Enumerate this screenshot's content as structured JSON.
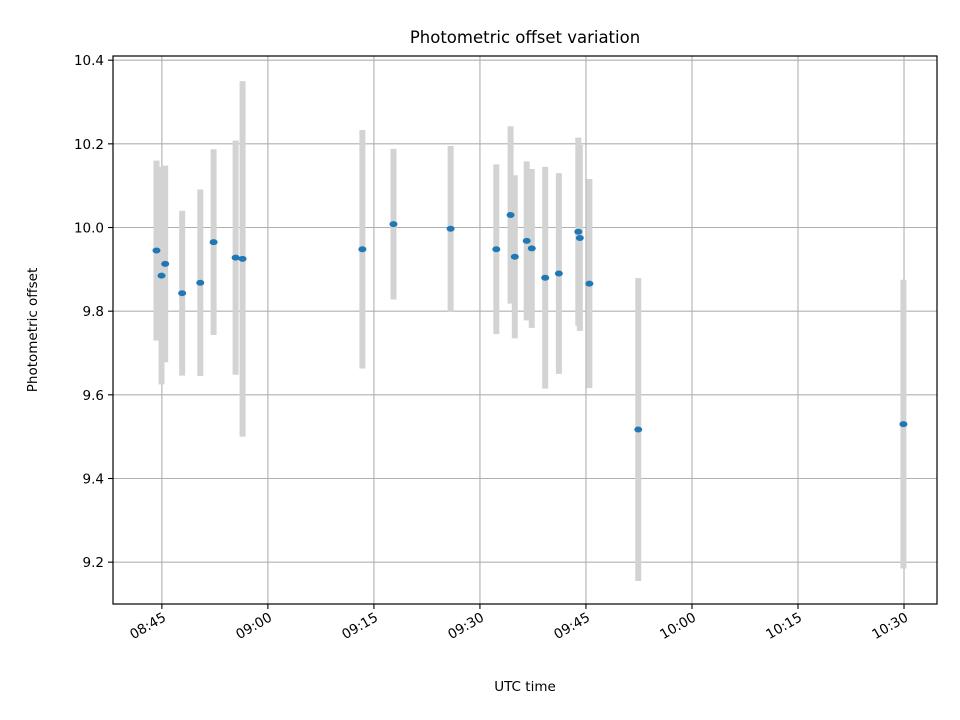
{
  "chart_data": {
    "type": "scatter",
    "title": "Photometric offset variation",
    "xlabel": "UTC time",
    "ylabel": "Photometric offset",
    "x_ticks": [
      "08:45",
      "09:00",
      "09:15",
      "09:30",
      "09:45",
      "10:00",
      "10:15",
      "10:30"
    ],
    "y_ticks": [
      "9.2",
      "9.4",
      "9.6",
      "9.8",
      "10.0",
      "10.2",
      "10.4"
    ],
    "xlim": [
      "08:38:05",
      "10:34:40"
    ],
    "ylim": [
      9.1,
      10.41
    ],
    "grid": true,
    "colors": {
      "marker": "#1f77b4",
      "errorbar": "#d3d3d3",
      "grid": "#b0b0b0"
    },
    "points": [
      {
        "x": "08:44:14",
        "y": 9.945,
        "yerr": 0.215
      },
      {
        "x": "08:44:57",
        "y": 9.885,
        "yerr": 0.26
      },
      {
        "x": "08:45:28",
        "y": 9.913,
        "yerr": 0.235
      },
      {
        "x": "08:47:52",
        "y": 9.843,
        "yerr": 0.197
      },
      {
        "x": "08:50:26",
        "y": 9.868,
        "yerr": 0.223
      },
      {
        "x": "08:52:19",
        "y": 9.965,
        "yerr": 0.222
      },
      {
        "x": "08:55:26",
        "y": 9.928,
        "yerr": 0.28
      },
      {
        "x": "08:56:25",
        "y": 9.925,
        "yerr": 0.425
      },
      {
        "x": "09:13:22",
        "y": 9.948,
        "yerr": 0.285
      },
      {
        "x": "09:17:46",
        "y": 10.008,
        "yerr": 0.18
      },
      {
        "x": "09:25:51",
        "y": 9.997,
        "yerr": 0.198
      },
      {
        "x": "09:32:19",
        "y": 9.948,
        "yerr": 0.203
      },
      {
        "x": "09:34:20",
        "y": 10.03,
        "yerr": 0.212
      },
      {
        "x": "09:34:56",
        "y": 9.93,
        "yerr": 0.195
      },
      {
        "x": "09:36:37",
        "y": 9.968,
        "yerr": 0.19
      },
      {
        "x": "09:37:20",
        "y": 9.95,
        "yerr": 0.19
      },
      {
        "x": "09:39:14",
        "y": 9.88,
        "yerr": 0.265
      },
      {
        "x": "09:41:10",
        "y": 9.89,
        "yerr": 0.24
      },
      {
        "x": "09:43:55",
        "y": 9.99,
        "yerr": 0.225
      },
      {
        "x": "09:44:08",
        "y": 9.975,
        "yerr": 0.222
      },
      {
        "x": "09:45:29",
        "y": 9.866,
        "yerr": 0.25
      },
      {
        "x": "09:52:24",
        "y": 9.517,
        "yerr": 0.362
      },
      {
        "x": "10:29:55",
        "y": 9.53,
        "yerr": 0.345
      }
    ]
  }
}
